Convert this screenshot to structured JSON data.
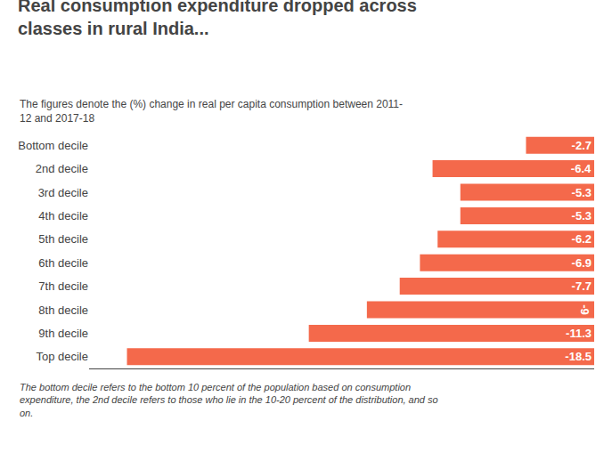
{
  "chart_data": {
    "type": "bar",
    "orientation": "horizontal",
    "title": "Real consumption expenditure dropped across\nclasses in rural India...",
    "subtitle": "The figures denote the (%) change in real per capita consumption between 2011-\n12 and 2017-18",
    "footnote": "The bottom decile refers to the bottom 10 percent of the population based on consumption\nexpenditure, the 2nd decile refers to those who lie in the 10-20 percent of the distribution, and so\non.",
    "categories": [
      "Bottom decile",
      "2nd decile",
      "3rd decile",
      "4th decile",
      "5th decile",
      "6th decile",
      "7th decile",
      "8th decile",
      "9th decile",
      "Top decile"
    ],
    "values": [
      -2.7,
      -6.4,
      -5.3,
      -5.3,
      -6.2,
      -6.9,
      -7.7,
      -9.0,
      -11.3,
      -18.5
    ],
    "value_labels": [
      "-2.7",
      "-6.4",
      "-5.3",
      "-5.3",
      "-6.2",
      "-6.9",
      "-7.7",
      "-9",
      "-11.3",
      "-18.5"
    ],
    "data_labels": true,
    "color": "#F4694B",
    "xlim": [
      -20,
      0
    ],
    "tick_labels": "y",
    "grid": false
  }
}
